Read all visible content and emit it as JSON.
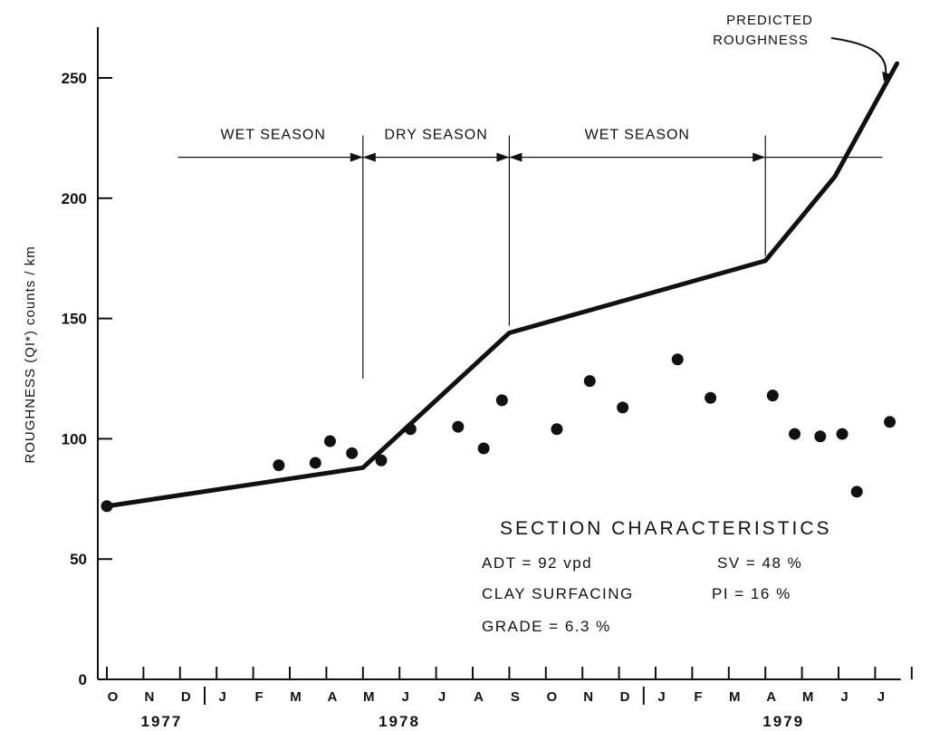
{
  "chart_data": {
    "type": "line",
    "ylabel": "ROUGHNESS  (QI*)  counts / km",
    "ylim": [
      0,
      270
    ],
    "yticks": [
      0,
      50,
      100,
      150,
      200,
      250
    ],
    "x_months": [
      "O",
      "N",
      "D",
      "J",
      "F",
      "M",
      "A",
      "M",
      "J",
      "J",
      "A",
      "S",
      "O",
      "N",
      "D",
      "J",
      "F",
      "M",
      "A",
      "M",
      "J",
      "J"
    ],
    "x_years": [
      {
        "label": "1977",
        "month_index": 1
      },
      {
        "label": "1978",
        "month_index": 7.5
      },
      {
        "label": "1979",
        "month_index": 18
      }
    ],
    "year_boundaries_after_month_index": [
      2.5,
      14.5
    ],
    "x_unit": "month index (0 = Oct 1977)",
    "series": [
      {
        "kind": "line",
        "points": [
          {
            "x": 0,
            "y": 72
          },
          {
            "x": 7,
            "y": 88
          },
          {
            "x": 11,
            "y": 144
          },
          {
            "x": 18,
            "y": 174
          },
          {
            "x": 19.9,
            "y": 209
          },
          {
            "x": 21.6,
            "y": 256
          }
        ]
      },
      {
        "kind": "scatter",
        "points": [
          {
            "x": 0,
            "y": 72
          },
          {
            "x": 4.7,
            "y": 89
          },
          {
            "x": 5.7,
            "y": 90
          },
          {
            "x": 6.1,
            "y": 99
          },
          {
            "x": 6.7,
            "y": 94
          },
          {
            "x": 7.5,
            "y": 91
          },
          {
            "x": 8.3,
            "y": 104
          },
          {
            "x": 9.6,
            "y": 105
          },
          {
            "x": 10.3,
            "y": 96
          },
          {
            "x": 10.8,
            "y": 116
          },
          {
            "x": 12.3,
            "y": 104
          },
          {
            "x": 13.2,
            "y": 124
          },
          {
            "x": 14.1,
            "y": 113
          },
          {
            "x": 15.6,
            "y": 133
          },
          {
            "x": 16.5,
            "y": 117
          },
          {
            "x": 18.2,
            "y": 118
          },
          {
            "x": 18.8,
            "y": 102
          },
          {
            "x": 19.5,
            "y": 101
          },
          {
            "x": 20.1,
            "y": 102
          },
          {
            "x": 20.5,
            "y": 78
          },
          {
            "x": 21.4,
            "y": 107
          }
        ]
      }
    ],
    "seasons": [
      {
        "label": "WET SEASON",
        "start": 1.5,
        "end": 7
      },
      {
        "label": "DRY SEASON",
        "start": 7,
        "end": 11
      },
      {
        "label": "WET SEASON",
        "start": 11,
        "end": 18
      }
    ],
    "season_dividers": [
      {
        "x": 7,
        "y_bottom": 125
      },
      {
        "x": 11,
        "y_bottom": 147
      },
      {
        "x": 18,
        "y_bottom": 176
      }
    ],
    "season_arrow_y": 217,
    "season_line_end": 21.2,
    "annotation": {
      "text_lines": [
        "PREDICTED",
        "ROUGHNESS"
      ],
      "target": {
        "x": 21.6,
        "y": 256
      }
    },
    "section": {
      "title": "SECTION  CHARACTERISTICS",
      "adt": "ADT =  92  vpd",
      "sv": "SV = 48 %",
      "surfacing": "CLAY  SURFACING",
      "pi": "PI = 16 %",
      "grade": "GRADE  =   6.3 %"
    }
  }
}
